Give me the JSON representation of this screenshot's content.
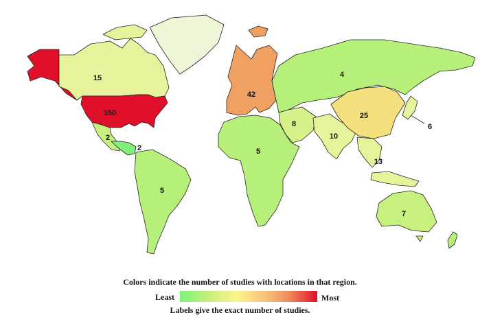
{
  "map": {
    "colors": {
      "least": "#7ff07a",
      "low": "#c8f07e",
      "low_mid": "#e6f39a",
      "mid": "#f4e07c",
      "high": "#f0a060",
      "most": "#e0102a",
      "pale": "#eef6d8"
    },
    "regions": [
      {
        "name": "Alaska",
        "label": "",
        "color": "#e0102a"
      },
      {
        "name": "Canada",
        "label": "15",
        "color": "#e6f39a"
      },
      {
        "name": "Greenland",
        "label": "",
        "color": "#eef6d8"
      },
      {
        "name": "United States",
        "label": "150",
        "color": "#e0102a"
      },
      {
        "name": "Mexico",
        "label": "2",
        "color": "#c8f07e"
      },
      {
        "name": "Central America",
        "label": "2",
        "color": "#7ff07a"
      },
      {
        "name": "South America",
        "label": "5",
        "color": "#b6f07a"
      },
      {
        "name": "Europe",
        "label": "42",
        "color": "#f0a060"
      },
      {
        "name": "Iceland",
        "label": "",
        "color": "#f0a060"
      },
      {
        "name": "Russia",
        "label": "4",
        "color": "#b6f07a"
      },
      {
        "name": "Middle East",
        "label": "8",
        "color": "#d6f08a"
      },
      {
        "name": "Africa",
        "label": "5",
        "color": "#b6f07a"
      },
      {
        "name": "South Asia",
        "label": "10",
        "color": "#e6f39a"
      },
      {
        "name": "China",
        "label": "25",
        "color": "#f4e07c"
      },
      {
        "name": "Japan",
        "label": "6",
        "color": "#e6f39a"
      },
      {
        "name": "Southeast Asia",
        "label": "13",
        "color": "#e6f39a"
      },
      {
        "name": "Australia",
        "label": "7",
        "color": "#c8f07e"
      },
      {
        "name": "New Zealand",
        "label": "",
        "color": "#b6f07a"
      }
    ]
  },
  "legend": {
    "caption_top": "Colors indicate the number of studies with locations in that region.",
    "least_label": "Least",
    "most_label": "Most",
    "caption_bottom": "Labels give the exact number of studies."
  }
}
